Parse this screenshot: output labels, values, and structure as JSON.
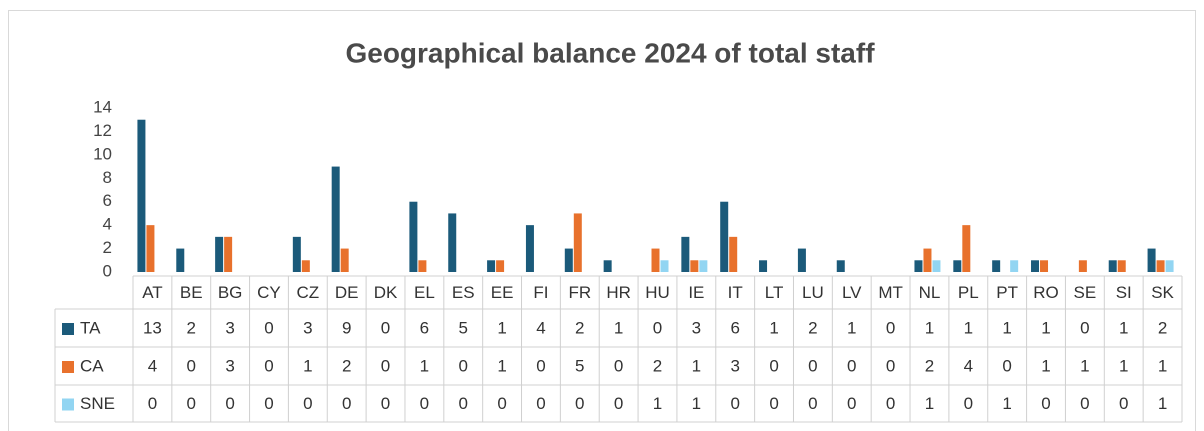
{
  "chart_data": {
    "type": "bar",
    "title": "Geographical balance 2024 of total staff",
    "categories": [
      "AT",
      "BE",
      "BG",
      "CY",
      "CZ",
      "DE",
      "DK",
      "EL",
      "ES",
      "EE",
      "FI",
      "FR",
      "HR",
      "HU",
      "IE",
      "IT",
      "LT",
      "LU",
      "LV",
      "MT",
      "NL",
      "PL",
      "PT",
      "RO",
      "SE",
      "SI",
      "SK"
    ],
    "series": [
      {
        "name": "TA",
        "color": "#1b5a7a",
        "values": [
          13,
          2,
          3,
          0,
          3,
          9,
          0,
          6,
          5,
          1,
          4,
          2,
          1,
          0,
          3,
          6,
          1,
          2,
          1,
          0,
          1,
          1,
          1,
          1,
          0,
          1,
          2
        ]
      },
      {
        "name": "CA",
        "color": "#e8712c",
        "values": [
          4,
          0,
          3,
          0,
          1,
          2,
          0,
          1,
          0,
          1,
          0,
          5,
          0,
          2,
          1,
          3,
          0,
          0,
          0,
          0,
          2,
          4,
          0,
          1,
          1,
          1,
          1
        ]
      },
      {
        "name": "SNE",
        "color": "#92d5f2",
        "values": [
          0,
          0,
          0,
          0,
          0,
          0,
          0,
          0,
          0,
          0,
          0,
          0,
          0,
          1,
          1,
          0,
          0,
          0,
          0,
          0,
          1,
          0,
          1,
          0,
          0,
          0,
          1
        ]
      }
    ],
    "ylim": [
      0,
      14
    ],
    "yticks": [
      0,
      2,
      4,
      6,
      8,
      10,
      12,
      14
    ],
    "grid": false,
    "legend": "table"
  }
}
